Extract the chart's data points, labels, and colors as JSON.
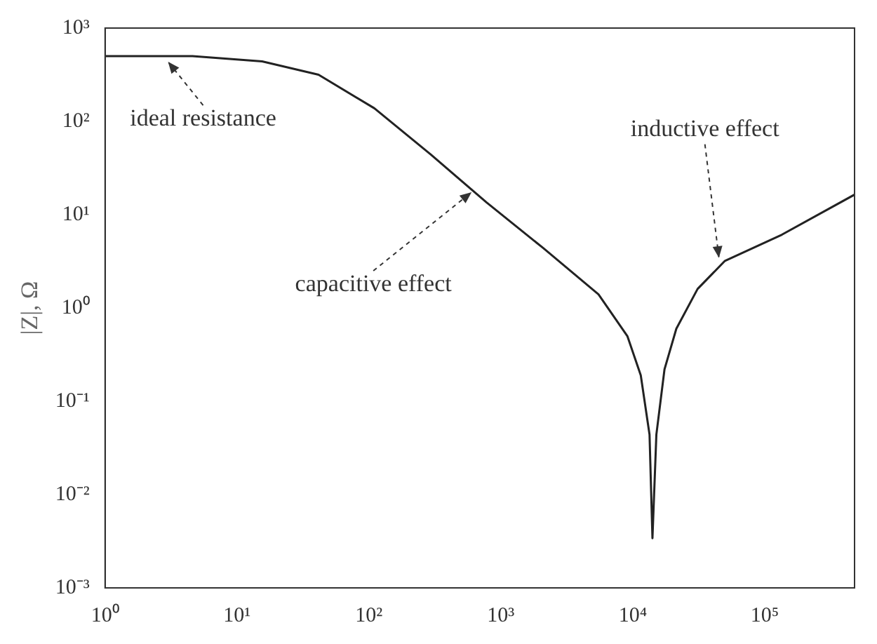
{
  "chart_data": {
    "type": "line",
    "ylabel": "|Z|, Ω",
    "log": "xy",
    "grid": false,
    "legend": false,
    "marker": "none",
    "line_style": "solid",
    "x": [
      1,
      4.6,
      15.5,
      41.5,
      110,
      295,
      780,
      2090,
      5500,
      9100,
      11500,
      13400,
      14100,
      15100,
      17400,
      21400,
      31000,
      50000,
      135000,
      480000
    ],
    "series": [
      {
        "color": "#222222",
        "values": [
          500,
          500,
          440,
          316,
          138,
          44,
          13.5,
          4.4,
          1.4,
          0.5,
          0.19,
          0.044,
          0.0034,
          0.044,
          0.22,
          0.6,
          1.6,
          3.2,
          6.1,
          16.4
        ]
      }
    ],
    "xlim": [
      1,
      480000
    ],
    "xticks": [
      {
        "value": 1,
        "label": "10⁰"
      },
      {
        "value": 10,
        "label": "10¹"
      },
      {
        "value": 100,
        "label": "10²"
      },
      {
        "value": 1000,
        "label": "10³"
      },
      {
        "value": 10000,
        "label": "10⁴"
      },
      {
        "value": 100000,
        "label": "10⁵"
      }
    ],
    "ylim": [
      0.001,
      1000
    ],
    "yticks": [
      {
        "value": 0.001,
        "label": "10⁻³"
      },
      {
        "value": 0.01,
        "label": "10⁻²"
      },
      {
        "value": 0.1,
        "label": "10⁻¹"
      },
      {
        "value": 1,
        "label": "10⁰"
      },
      {
        "value": 10,
        "label": "10¹"
      },
      {
        "value": 100,
        "label": "10²"
      },
      {
        "value": 1000,
        "label": "10³"
      }
    ],
    "annotations": [
      {
        "text": "ideal resistance",
        "x": 3,
        "y": 500
      },
      {
        "text": "capacitive effect",
        "x": 600,
        "y": 20
      },
      {
        "text": "inductive effect",
        "x": 45000,
        "y": 3
      }
    ]
  }
}
